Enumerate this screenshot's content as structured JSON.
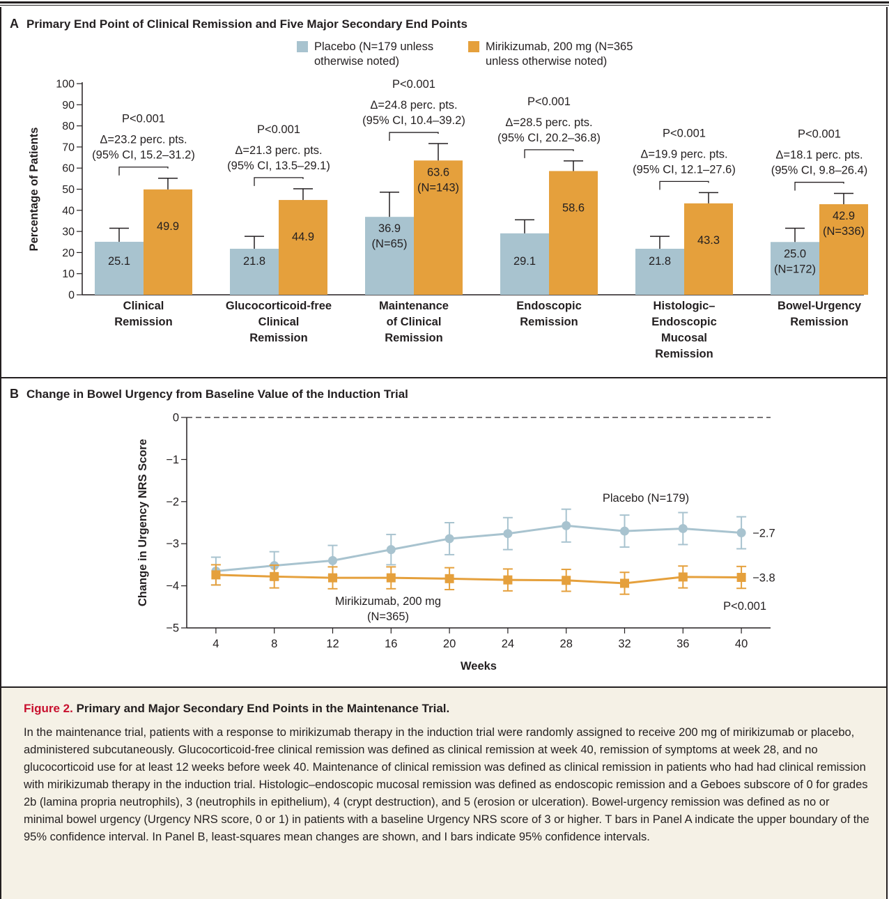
{
  "chart_data": [
    {
      "panel": "A",
      "type": "bar",
      "title": "Primary End Point of Clinical Remission and Five Major Secondary End Points",
      "ylabel": "Percentage of Patients",
      "ylim": [
        0,
        100
      ],
      "yticks": [
        0,
        10,
        20,
        30,
        40,
        50,
        60,
        70,
        80,
        90,
        100
      ],
      "legend": {
        "placement": "top-center",
        "entries": [
          {
            "name_line1": "Placebo (N=179 unless",
            "name_line2": "otherwise noted)",
            "color": "#a8c3cf"
          },
          {
            "name_line1": "Mirikizumab, 200 mg (N=365",
            "name_line2": "unless otherwise noted)",
            "color": "#e5a03c"
          }
        ]
      },
      "categories": [
        [
          "Clinical",
          "Remission"
        ],
        [
          "Glucocorticoid-free",
          "Clinical",
          "Remission"
        ],
        [
          "Maintenance",
          "of Clinical",
          "Remission"
        ],
        [
          "Endoscopic",
          "Remission"
        ],
        [
          "Histologic–",
          "Endoscopic",
          "Mucosal",
          "Remission"
        ],
        [
          "Bowel-Urgency",
          "Remission"
        ]
      ],
      "series": [
        {
          "name": "Placebo",
          "color": "#a8c3cf",
          "values": [
            25.1,
            21.8,
            36.9,
            29.1,
            21.8,
            25.0
          ],
          "ci_upper": [
            31.5,
            27.7,
            48.6,
            35.5,
            27.7,
            31.5
          ],
          "value_labels": [
            "25.1",
            "21.8",
            "36.9",
            "29.1",
            "21.8",
            "25.0"
          ],
          "n_labels": [
            "",
            "",
            "(N=65)",
            "",
            "",
            "(N=172)"
          ]
        },
        {
          "name": "Mirikizumab, 200 mg",
          "color": "#e5a03c",
          "values": [
            49.9,
            44.9,
            63.6,
            58.6,
            43.3,
            42.9
          ],
          "ci_upper": [
            55.2,
            50.2,
            71.6,
            63.4,
            48.4,
            48.0
          ],
          "value_labels": [
            "49.9",
            "44.9",
            "63.6",
            "58.6",
            "43.3",
            "42.9"
          ],
          "n_labels": [
            "",
            "",
            "(N=143)",
            "",
            "",
            "(N=336)"
          ]
        }
      ],
      "annotations": [
        {
          "p": "P<0.001",
          "delta": "Δ=23.2 perc. pts.",
          "ci": "(95% CI, 15.2–31.2)"
        },
        {
          "p": "P<0.001",
          "delta": "Δ=21.3 perc. pts.",
          "ci": "(95% CI, 13.5–29.1)"
        },
        {
          "p": "P<0.001",
          "delta": "Δ=24.8 perc. pts.",
          "ci": "(95% CI, 10.4–39.2)"
        },
        {
          "p": "P<0.001",
          "delta": "Δ=28.5 perc. pts.",
          "ci": "(95% CI, 20.2–36.8)"
        },
        {
          "p": "P<0.001",
          "delta": "Δ=19.9 perc. pts.",
          "ci": "(95% CI, 12.1–27.6)"
        },
        {
          "p": "P<0.001",
          "delta": "Δ=18.1 perc. pts.",
          "ci": "(95% CI, 9.8–26.4)"
        }
      ]
    },
    {
      "panel": "B",
      "type": "line",
      "title": "Change in Bowel Urgency from Baseline Value of the Induction Trial",
      "xlabel": "Weeks",
      "ylabel": "Change in Urgency NRS Score",
      "x": [
        4,
        8,
        12,
        16,
        20,
        24,
        28,
        32,
        36,
        40
      ],
      "xlim": [
        2,
        42
      ],
      "ylim": [
        -5,
        0
      ],
      "yticks": [
        0,
        -1,
        -2,
        -3,
        -4,
        -5
      ],
      "ytick_labels": [
        "0",
        "−1",
        "−2",
        "−3",
        "−4",
        "−5"
      ],
      "reference_line": {
        "y": 0,
        "style": "dashed"
      },
      "series": [
        {
          "name": "Placebo (N=179)",
          "marker": "circle",
          "color": "#a8c3cf",
          "values": [
            -3.65,
            -3.52,
            -3.4,
            -3.14,
            -2.88,
            -2.76,
            -2.57,
            -2.7,
            -2.64,
            -2.74
          ],
          "ci_low": [
            -3.98,
            -3.85,
            -3.75,
            -3.5,
            -3.26,
            -3.14,
            -2.96,
            -3.08,
            -3.02,
            -3.12
          ],
          "ci_high": [
            -3.32,
            -3.19,
            -3.04,
            -2.78,
            -2.5,
            -2.38,
            -2.18,
            -2.32,
            -2.26,
            -2.36
          ],
          "end_label": "−2.7"
        },
        {
          "name_line1": "Mirikizumab, 200 mg",
          "name_line2": "(N=365)",
          "marker": "square",
          "color": "#e5a03c",
          "values": [
            -3.74,
            -3.78,
            -3.81,
            -3.81,
            -3.83,
            -3.86,
            -3.87,
            -3.94,
            -3.79,
            -3.8
          ],
          "ci_low": [
            -3.98,
            -4.05,
            -4.07,
            -4.07,
            -4.09,
            -4.12,
            -4.13,
            -4.2,
            -4.05,
            -4.06
          ],
          "ci_high": [
            -3.5,
            -3.51,
            -3.55,
            -3.55,
            -3.57,
            -3.6,
            -3.61,
            -3.68,
            -3.53,
            -3.54
          ],
          "end_label": "−3.8"
        }
      ],
      "p_value": "P<0.001"
    }
  ],
  "panel_a": {
    "letter": "A"
  },
  "panel_b": {
    "letter": "B"
  },
  "caption": {
    "figure_label": "Figure 2.",
    "title": " Primary and Major Secondary End Points in the Maintenance Trial.",
    "body": "In the maintenance trial, patients with a response to mirikizumab therapy in the induction trial were randomly assigned to receive 200 mg of mirikizumab or placebo, administered subcutaneously. Glucocorticoid-free clinical remission was defined as clinical remission at week 40, remission of symptoms at week 28, and no glucocorticoid use for at least 12 weeks before week 40. Maintenance of clinical remission was defined as clinical remission in patients who had had clinical remission with mirikizumab therapy in the induction trial. Histologic–endoscopic mucosal remission was defined as endoscopic remission and a Geboes subscore of 0 for grades 2b (lamina propria neutrophils), 3 (neutrophils in epithelium), 4 (crypt destruction), and 5 (erosion or ulceration). Bowel-urgency remission was defined as no or minimal bowel urgency (Urgency NRS score, 0 or 1) in patients with a baseline Urgency NRS score of 3 or higher. T bars in Panel A indicate the upper boundary of the 95% confidence interval. In Panel B, least-squares mean changes are shown, and I bars indicate 95% confidence intervals."
  }
}
